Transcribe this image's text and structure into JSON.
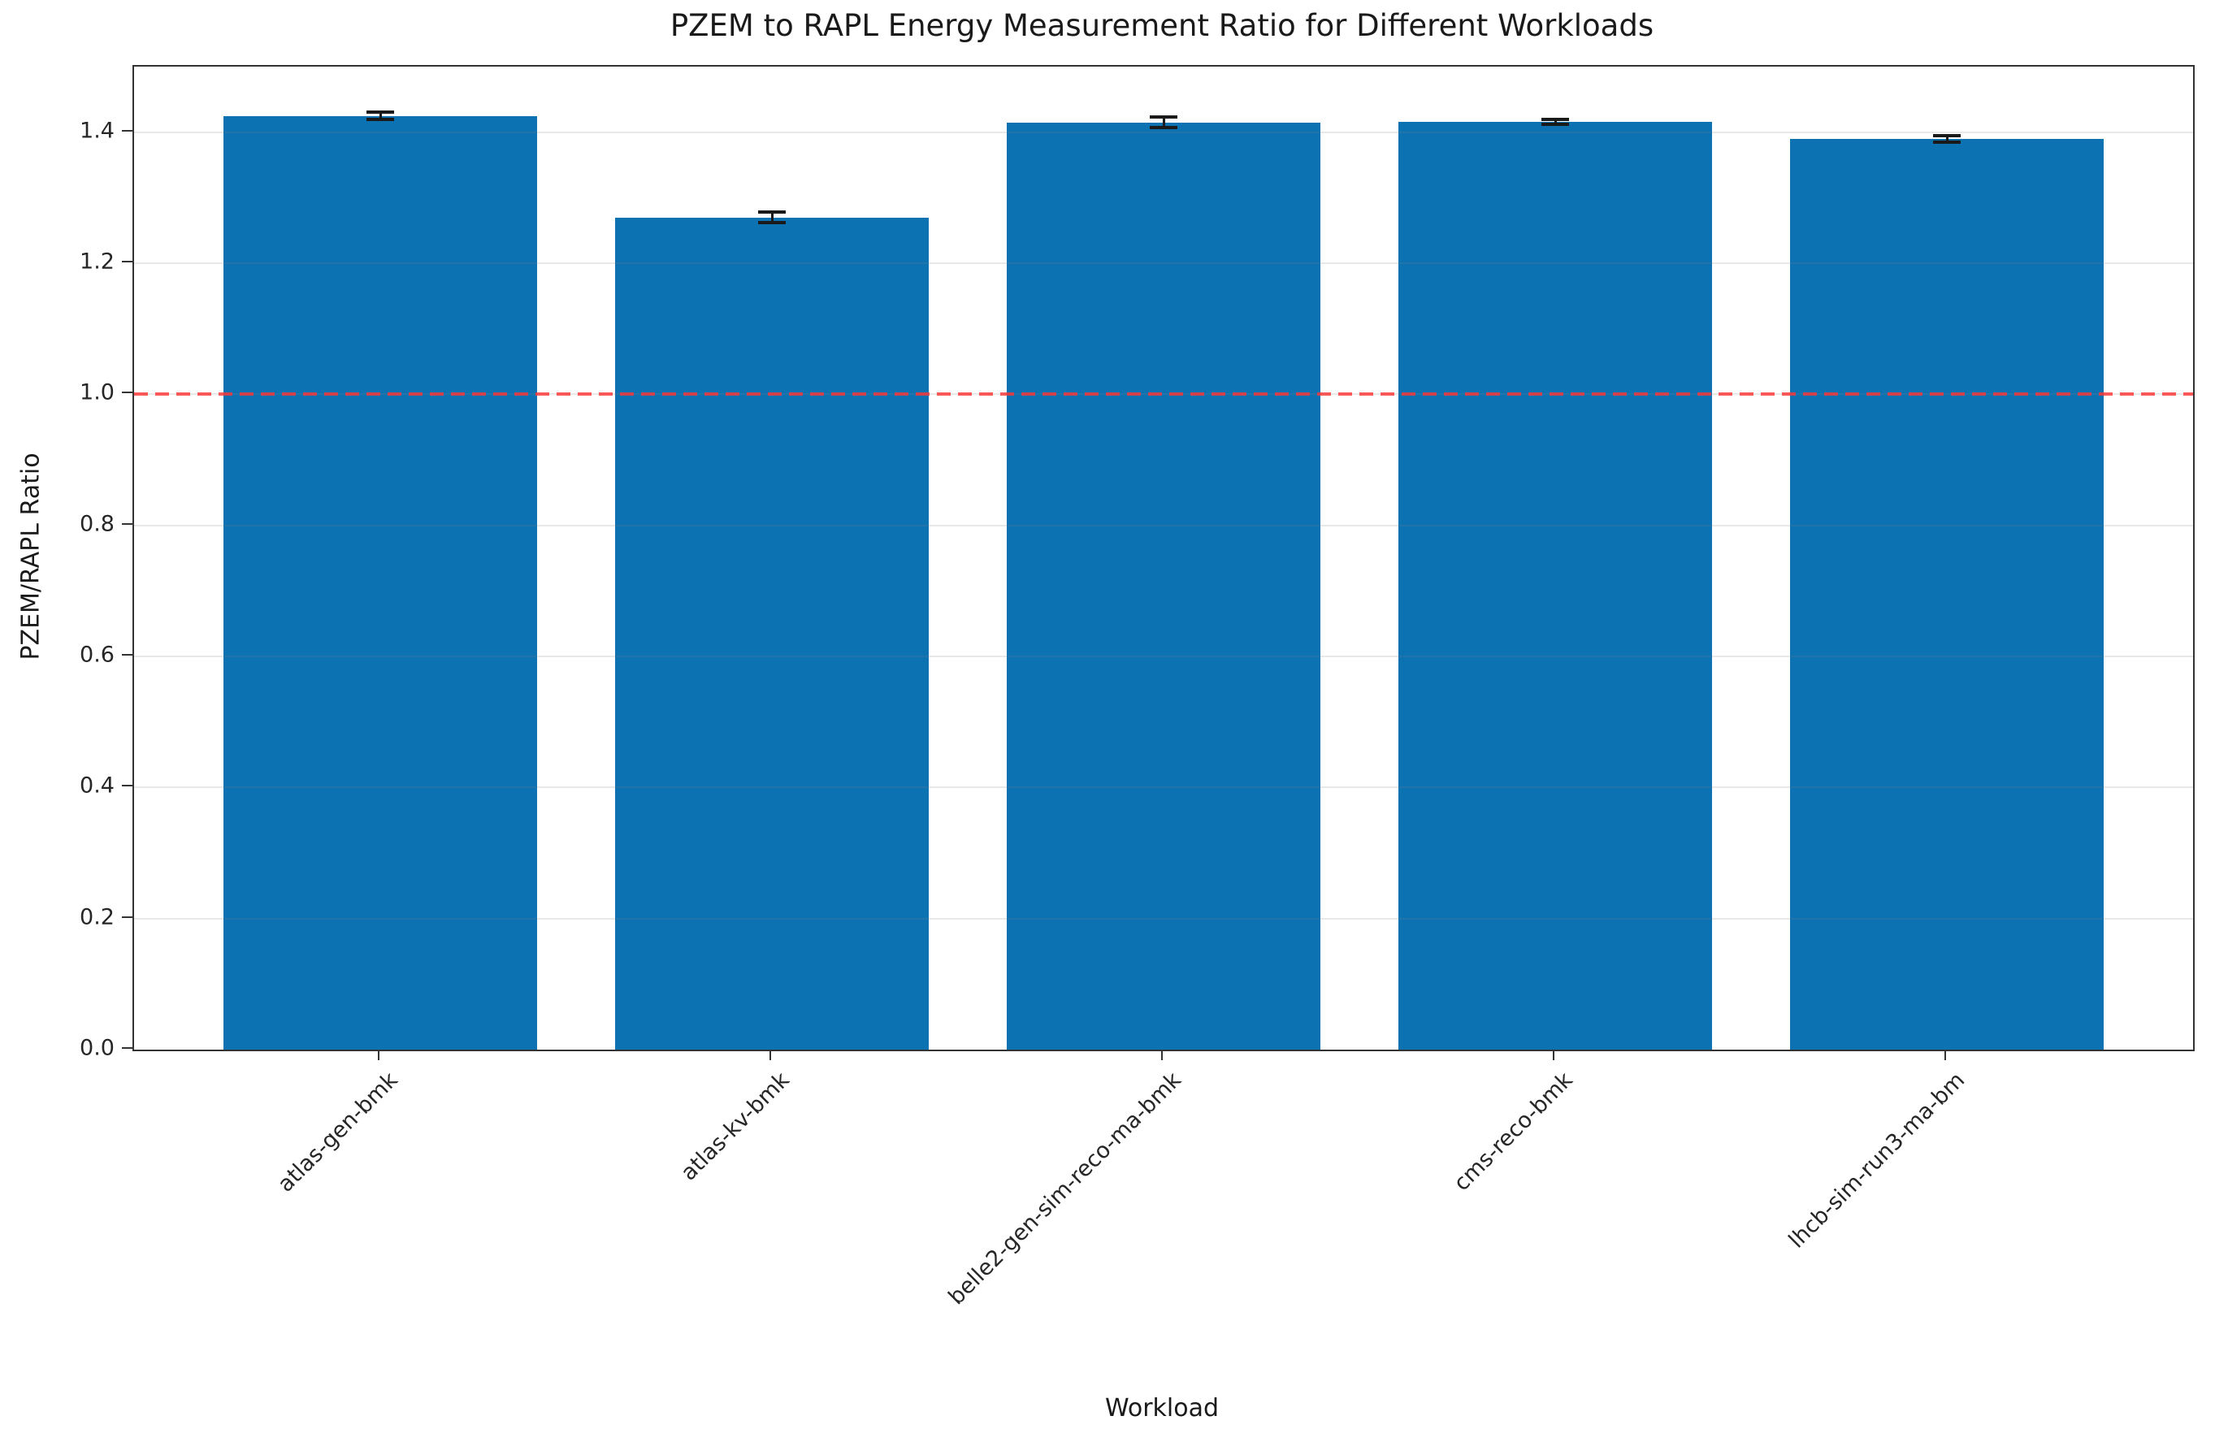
{
  "figure": {
    "background_color": "#ffffff",
    "spine_color": "#333333"
  },
  "chart_data": {
    "type": "bar",
    "title": "PZEM to RAPL Energy Measurement Ratio for Different Workloads",
    "xlabel": "Workload",
    "ylabel": "PZEM/RAPL Ratio",
    "categories": [
      "atlas-gen-bmk",
      "atlas-kv-bmk",
      "belle2-gen-sim-reco-ma-bmk",
      "cms-reco-bmk",
      "lhcb-sim-run3-ma-bm"
    ],
    "values": [
      1.425,
      1.27,
      1.415,
      1.416,
      1.39
    ],
    "error_bars": [
      0.005,
      0.008,
      0.008,
      0.004,
      0.005
    ],
    "bar_color": "#0d72b2",
    "error_bar_color": "#1a1a1a",
    "reference_line": {
      "y": 1.0,
      "style": "dashed",
      "color": "#fa3737"
    },
    "ylim": [
      0,
      1.5
    ],
    "yticks": [
      0.0,
      0.2,
      0.4,
      0.6,
      0.8,
      1.0,
      1.2,
      1.4
    ],
    "ytick_labels": [
      "0.0",
      "0.2",
      "0.4",
      "0.6",
      "0.8",
      "1.0",
      "1.2",
      "1.4"
    ],
    "xtick_rotation_deg": 45,
    "grid": true,
    "grid_color": "rgba(128,128,128,0.18)",
    "legend": null
  }
}
